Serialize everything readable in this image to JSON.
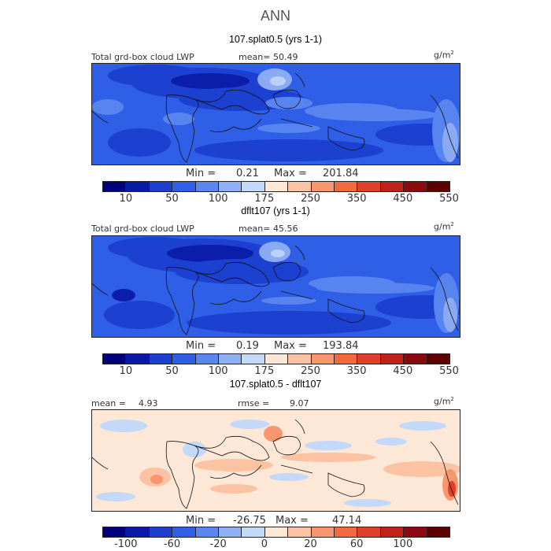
{
  "title": "ANN",
  "panels": [
    {
      "id": "top",
      "title": "107.splat0.5 (yrs 1-1)",
      "left_label": "Total grd-box cloud LWP",
      "mean_label": "mean=",
      "mean_value": "50.49",
      "unit_base": "g/m",
      "unit_exp": "2",
      "min_label": "Min =",
      "min_value": "0.21",
      "max_label": "Max =",
      "max_value": "201.84",
      "colorbar_labels": [
        "10",
        "50",
        "100",
        "175",
        "250",
        "350",
        "450",
        "550"
      ],
      "colors": [
        "#00007a",
        "#0a1aa8",
        "#1c3fcf",
        "#2f5fe6",
        "#5b86f0",
        "#8fb0f5",
        "#c4d8fa",
        "#fde7d6",
        "#fbc2a3",
        "#f8966f",
        "#f26a3e",
        "#e0402a",
        "#c0211a",
        "#8a0a10",
        "#5c0000"
      ]
    },
    {
      "id": "middle",
      "title": "dflt107 (yrs 1-1)",
      "left_label": "Total grd-box cloud LWP",
      "mean_label": "mean=",
      "mean_value": "45.56",
      "unit_base": "g/m",
      "unit_exp": "2",
      "min_label": "Min =",
      "min_value": "0.19",
      "max_label": "Max =",
      "max_value": "193.84",
      "colorbar_labels": [
        "10",
        "50",
        "100",
        "175",
        "250",
        "350",
        "450",
        "550"
      ],
      "colors": [
        "#00007a",
        "#0a1aa8",
        "#1c3fcf",
        "#2f5fe6",
        "#5b86f0",
        "#8fb0f5",
        "#c4d8fa",
        "#fde7d6",
        "#fbc2a3",
        "#f8966f",
        "#f26a3e",
        "#e0402a",
        "#c0211a",
        "#8a0a10",
        "#5c0000"
      ]
    },
    {
      "id": "diff",
      "title": "107.splat0.5 - dflt107",
      "mean_label": "mean =",
      "mean_value": "4.93",
      "rmse_label": "rmse =",
      "rmse_value": "9.07",
      "unit_base": "g/m",
      "unit_exp": "2",
      "min_label": "Min =",
      "min_value": "-26.75",
      "max_label": "Max =",
      "max_value": "47.14",
      "colorbar_labels": [
        "-100",
        "-60",
        "-20",
        "0",
        "20",
        "60",
        "100"
      ],
      "colors": [
        "#00007a",
        "#0a1aa8",
        "#1c3fcf",
        "#2f5fe6",
        "#5b86f0",
        "#8fb0f5",
        "#c4d8fa",
        "#fde7d6",
        "#fbc2a3",
        "#f8966f",
        "#f26a3e",
        "#e0402a",
        "#c0211a",
        "#8a0a10",
        "#5c0000"
      ]
    }
  ]
}
